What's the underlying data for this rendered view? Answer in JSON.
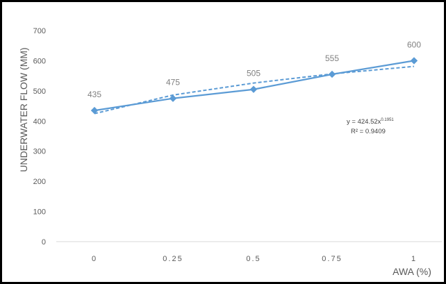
{
  "chart_data": {
    "type": "line",
    "title": "",
    "xlabel": "AWA (%)",
    "ylabel": "UNDERWATER FLOW (MM)",
    "x": [
      0,
      0.25,
      0.5,
      0.75,
      1
    ],
    "x_tick_labels": [
      "0",
      "0.25",
      "0.5",
      "0.75",
      "1"
    ],
    "y_tick_labels": [
      "0",
      "100",
      "200",
      "300",
      "400",
      "500",
      "600",
      "700"
    ],
    "ylim": [
      0,
      700
    ],
    "grid": false,
    "legend": "none",
    "series": [
      {
        "values": [
          435,
          475,
          505,
          555,
          600
        ],
        "data_labels": [
          "435",
          "475",
          "505",
          "555",
          "600"
        ],
        "color": "#5B9BD5",
        "marker": "diamond",
        "line_style": "solid"
      }
    ],
    "trendline": {
      "type": "power",
      "line_style": "dashed",
      "color": "#5B9BD5",
      "equation_prefix": "y = 424.52x",
      "equation_exponent": "0.1951",
      "r_squared_label": "R² = 0.9409"
    }
  }
}
